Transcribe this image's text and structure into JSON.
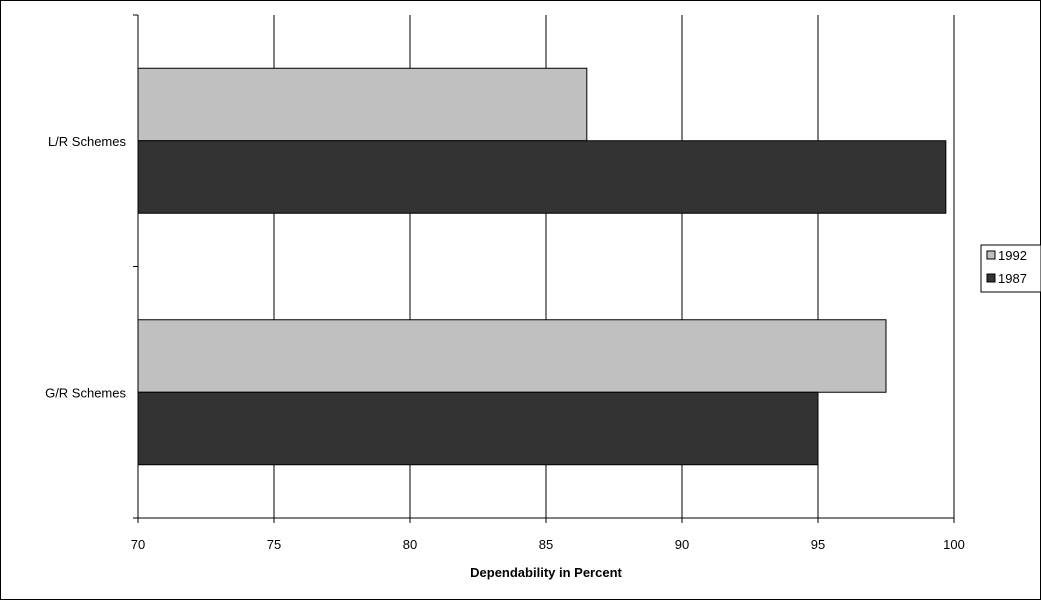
{
  "chart_data": {
    "type": "bar",
    "orientation": "horizontal",
    "categories": [
      "L/R Schemes",
      "G/R Schemes"
    ],
    "series": [
      {
        "name": "1992",
        "values": [
          86.5,
          97.5
        ],
        "color": "#c0c0c0"
      },
      {
        "name": "1987",
        "values": [
          99.7,
          95.0
        ],
        "color": "#333333"
      }
    ],
    "x_ticks": [
      "70",
      "75",
      "80",
      "85",
      "90",
      "95",
      "100"
    ],
    "xlim": [
      70,
      100
    ],
    "xlabel": "Dependability in Percent",
    "ylabel": "",
    "title": "",
    "grid": "vertical",
    "legend_position": "right"
  }
}
